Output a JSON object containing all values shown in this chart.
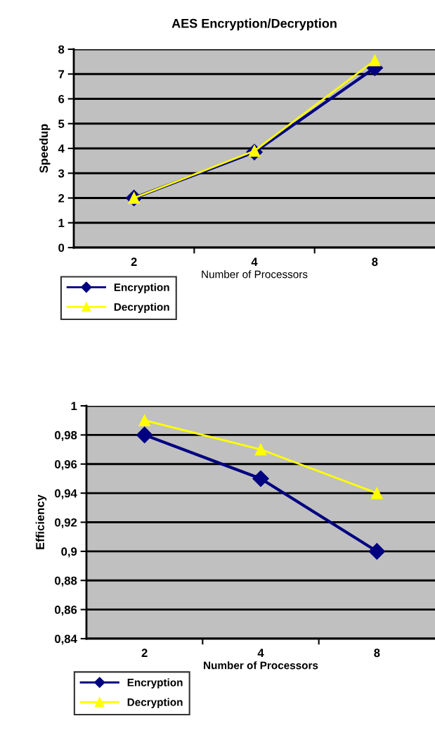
{
  "chart_data": [
    {
      "type": "line",
      "title": "AES Encryption/Decryption",
      "xlabel": "Number of Processors",
      "ylabel": "Speedup",
      "categories": [
        "2",
        "4",
        "8"
      ],
      "series": [
        {
          "name": "Encryption",
          "color": "#000080",
          "marker": "diamond",
          "values": [
            2,
            3.85,
            7.25
          ]
        },
        {
          "name": "Decryption",
          "color": "#ffff00",
          "marker": "triangle",
          "values": [
            2,
            3.9,
            7.55
          ]
        }
      ],
      "ylim": [
        0,
        8
      ],
      "yticks": [
        0,
        1,
        2,
        3,
        4,
        5,
        6,
        7,
        8
      ],
      "grid": "y",
      "legend": "bottom left"
    },
    {
      "type": "line",
      "xlabel": "Number of Processors",
      "ylabel": "Efficiency",
      "categories": [
        "2",
        "4",
        "8"
      ],
      "series": [
        {
          "name": "Encryption",
          "color": "#000080",
          "marker": "diamond",
          "values": [
            0.98,
            0.95,
            0.9
          ]
        },
        {
          "name": "Decryption",
          "color": "#ffff00",
          "marker": "triangle",
          "values": [
            0.99,
            0.97,
            0.94
          ]
        }
      ],
      "ylim": [
        0.84,
        1
      ],
      "yticks": [
        {
          "value": 0.84,
          "label": "0,84"
        },
        {
          "value": 0.86,
          "label": "0,86"
        },
        {
          "value": 0.88,
          "label": "0,88"
        },
        {
          "value": 0.9,
          "label": "0,9"
        },
        {
          "value": 0.92,
          "label": "0,92"
        },
        {
          "value": 0.94,
          "label": "0,94"
        },
        {
          "value": 0.96,
          "label": "0,96"
        },
        {
          "value": 0.98,
          "label": "0,98"
        },
        {
          "value": 1,
          "label": "1"
        }
      ],
      "grid": "y",
      "legend": "bottom left"
    }
  ]
}
